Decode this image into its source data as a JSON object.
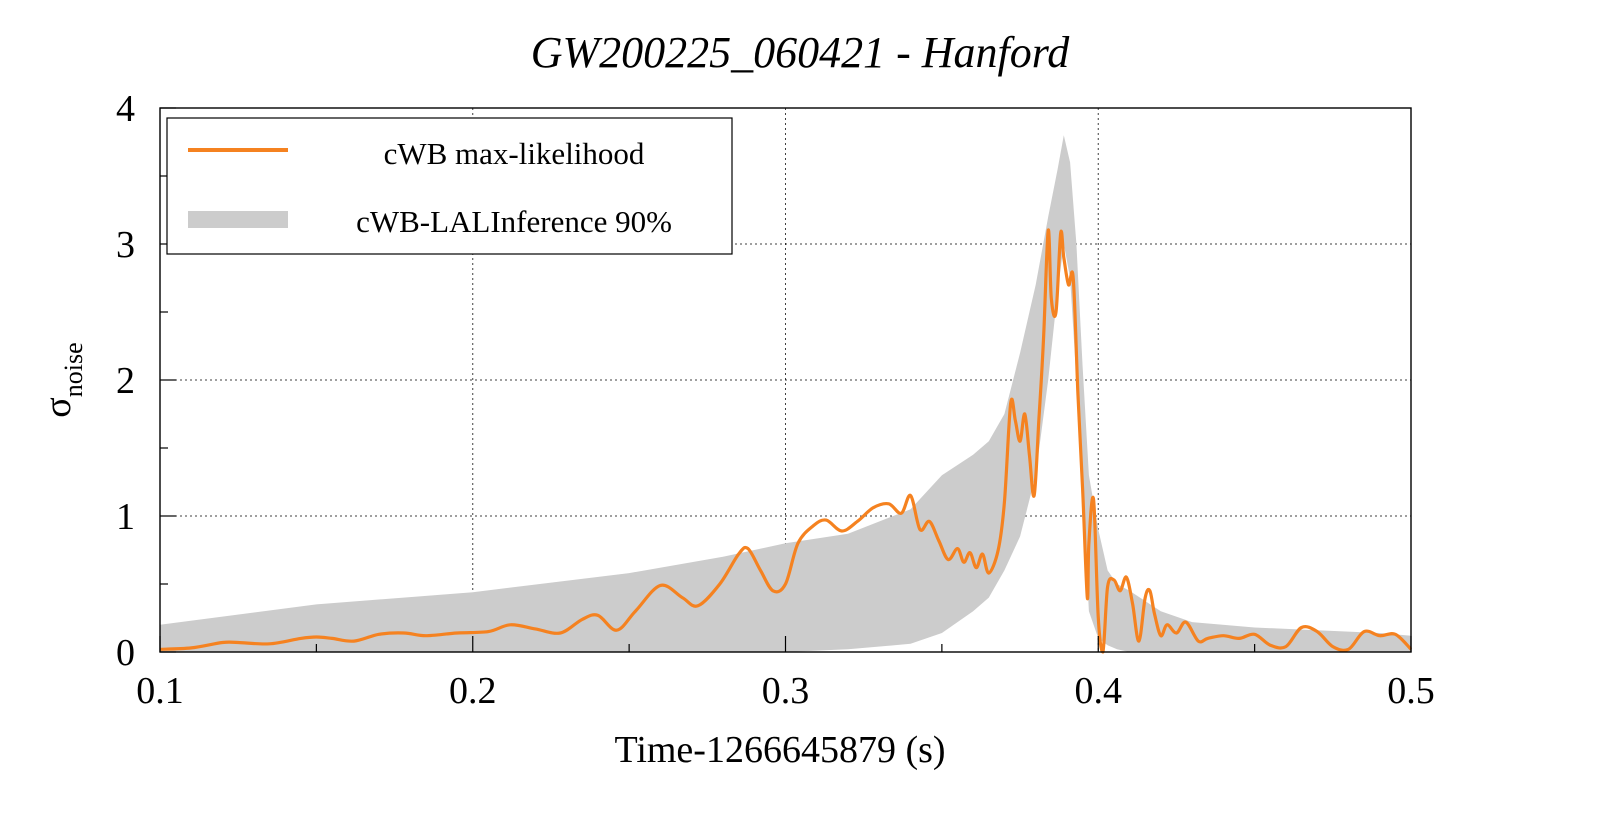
{
  "chart_data": {
    "type": "line",
    "title": "GW200225_060421 - Hanford",
    "xlabel": "Time-1266645879 (s)",
    "ylabel": {
      "base": "σ",
      "subscript": "noise"
    },
    "xlim": [
      0.1,
      0.5
    ],
    "ylim": [
      0,
      4
    ],
    "xticks": [
      "0.1",
      "0.2",
      "0.3",
      "0.4",
      "0.5"
    ],
    "yticks": [
      "0",
      "1",
      "2",
      "3",
      "4"
    ],
    "grid": true,
    "legend": {
      "position": "top-left",
      "entries": [
        "cWB max-likelihood",
        "cWB-LALInference 90%"
      ]
    },
    "colors": {
      "line": "#f58220",
      "band": "#cccccc"
    },
    "series": [
      {
        "name": "cWB max-likelihood",
        "kind": "line",
        "x": [
          0.1,
          0.11,
          0.12,
          0.125,
          0.135,
          0.145,
          0.15,
          0.155,
          0.162,
          0.17,
          0.178,
          0.185,
          0.195,
          0.205,
          0.212,
          0.22,
          0.228,
          0.235,
          0.24,
          0.246,
          0.252,
          0.26,
          0.267,
          0.272,
          0.279,
          0.285,
          0.288,
          0.292,
          0.296,
          0.3,
          0.304,
          0.309,
          0.313,
          0.318,
          0.323,
          0.328,
          0.333,
          0.337,
          0.34,
          0.343,
          0.346,
          0.349,
          0.352,
          0.355,
          0.357,
          0.359,
          0.361,
          0.363,
          0.365,
          0.368,
          0.37,
          0.372,
          0.3735,
          0.375,
          0.3765,
          0.378,
          0.3795,
          0.381,
          0.3825,
          0.384,
          0.385,
          0.3865,
          0.388,
          0.389,
          0.3905,
          0.392,
          0.3935,
          0.395,
          0.3965,
          0.397,
          0.3985,
          0.4,
          0.4015,
          0.403,
          0.405,
          0.407,
          0.409,
          0.411,
          0.413,
          0.415,
          0.4165,
          0.418,
          0.42,
          0.422,
          0.425,
          0.428,
          0.432,
          0.435,
          0.44,
          0.445,
          0.45,
          0.455,
          0.46,
          0.465,
          0.47,
          0.475,
          0.48,
          0.485,
          0.49,
          0.495,
          0.5
        ],
        "y": [
          0.02,
          0.03,
          0.07,
          0.07,
          0.06,
          0.1,
          0.11,
          0.1,
          0.08,
          0.13,
          0.14,
          0.12,
          0.14,
          0.15,
          0.2,
          0.17,
          0.14,
          0.24,
          0.27,
          0.16,
          0.3,
          0.49,
          0.4,
          0.34,
          0.5,
          0.72,
          0.76,
          0.6,
          0.45,
          0.5,
          0.8,
          0.93,
          0.97,
          0.89,
          0.96,
          1.06,
          1.09,
          1.02,
          1.15,
          0.9,
          0.96,
          0.82,
          0.68,
          0.76,
          0.66,
          0.73,
          0.62,
          0.72,
          0.58,
          0.75,
          1.1,
          1.83,
          1.7,
          1.55,
          1.75,
          1.45,
          1.15,
          1.7,
          2.3,
          3.1,
          2.6,
          2.5,
          3.08,
          2.9,
          2.7,
          2.75,
          1.9,
          1.2,
          0.4,
          0.8,
          1.12,
          0.25,
          0.0,
          0.48,
          0.53,
          0.45,
          0.55,
          0.35,
          0.08,
          0.4,
          0.45,
          0.28,
          0.12,
          0.2,
          0.14,
          0.22,
          0.08,
          0.1,
          0.12,
          0.1,
          0.13,
          0.05,
          0.04,
          0.18,
          0.15,
          0.04,
          0.02,
          0.15,
          0.12,
          0.13,
          0.02
        ]
      },
      {
        "name": "cWB-LALInference 90%",
        "kind": "band",
        "x": [
          0.1,
          0.15,
          0.2,
          0.25,
          0.28,
          0.3,
          0.32,
          0.34,
          0.35,
          0.36,
          0.365,
          0.37,
          0.375,
          0.38,
          0.384,
          0.387,
          0.389,
          0.391,
          0.393,
          0.395,
          0.397,
          0.4,
          0.403,
          0.406,
          0.41,
          0.42,
          0.43,
          0.45,
          0.47,
          0.49,
          0.5
        ],
        "lower": [
          0.0,
          0.0,
          0.0,
          0.0,
          0.0,
          0.0,
          0.02,
          0.06,
          0.14,
          0.3,
          0.4,
          0.6,
          0.85,
          1.3,
          2.0,
          2.65,
          3.0,
          2.75,
          2.0,
          1.2,
          0.3,
          0.1,
          0.05,
          0.02,
          0.0,
          0.0,
          0.0,
          0.0,
          0.0,
          0.0,
          0.0
        ],
        "upper": [
          0.2,
          0.35,
          0.44,
          0.58,
          0.7,
          0.8,
          0.87,
          1.05,
          1.3,
          1.45,
          1.55,
          1.75,
          2.2,
          2.7,
          3.2,
          3.55,
          3.8,
          3.6,
          3.0,
          2.1,
          1.3,
          0.9,
          0.6,
          0.5,
          0.45,
          0.3,
          0.22,
          0.18,
          0.16,
          0.14,
          0.12
        ]
      }
    ]
  }
}
